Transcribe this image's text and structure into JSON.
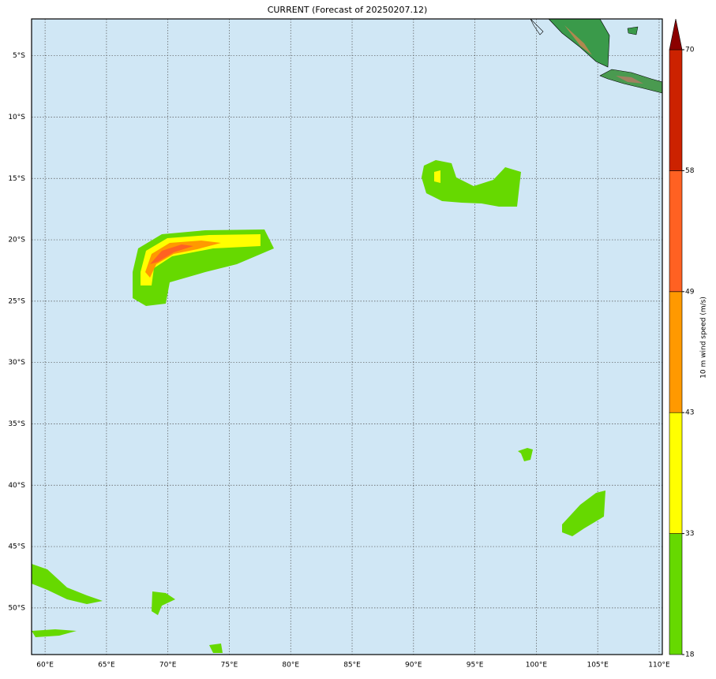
{
  "chart_data": {
    "type": "map",
    "title": "CURRENT (Forecast of 20250207.12)",
    "xlim": [
      58.9,
      110.26
    ],
    "ylim": [
      -53.8,
      -2.0
    ],
    "xticks": [
      {
        "value": 60,
        "label": "60°E"
      },
      {
        "value": 65,
        "label": "65°E"
      },
      {
        "value": 70,
        "label": "70°E"
      },
      {
        "value": 75,
        "label": "75°E"
      },
      {
        "value": 80,
        "label": "80°E"
      },
      {
        "value": 85,
        "label": "85°E"
      },
      {
        "value": 90,
        "label": "90°E"
      },
      {
        "value": 95,
        "label": "95°E"
      },
      {
        "value": 100,
        "label": "100°E"
      },
      {
        "value": 105,
        "label": "105°E"
      },
      {
        "value": 110,
        "label": "110°E"
      }
    ],
    "yticks": [
      {
        "value": -5,
        "label": "5°S"
      },
      {
        "value": -10,
        "label": "10°S"
      },
      {
        "value": -15,
        "label": "15°S"
      },
      {
        "value": -20,
        "label": "20°S"
      },
      {
        "value": -25,
        "label": "25°S"
      },
      {
        "value": -30,
        "label": "30°S"
      },
      {
        "value": -35,
        "label": "35°S"
      },
      {
        "value": -40,
        "label": "40°S"
      },
      {
        "value": -45,
        "label": "45°S"
      },
      {
        "value": -50,
        "label": "50°S"
      }
    ],
    "grid": true,
    "colorbar": {
      "label": "10 m wind speed (m/s)",
      "levels": [
        18,
        33,
        43,
        49,
        58,
        70
      ],
      "colors": [
        "#66d900",
        "#ffff00",
        "#ff9900",
        "#ff6122",
        "#cc2200"
      ],
      "extend_color": "#8b0000"
    }
  }
}
